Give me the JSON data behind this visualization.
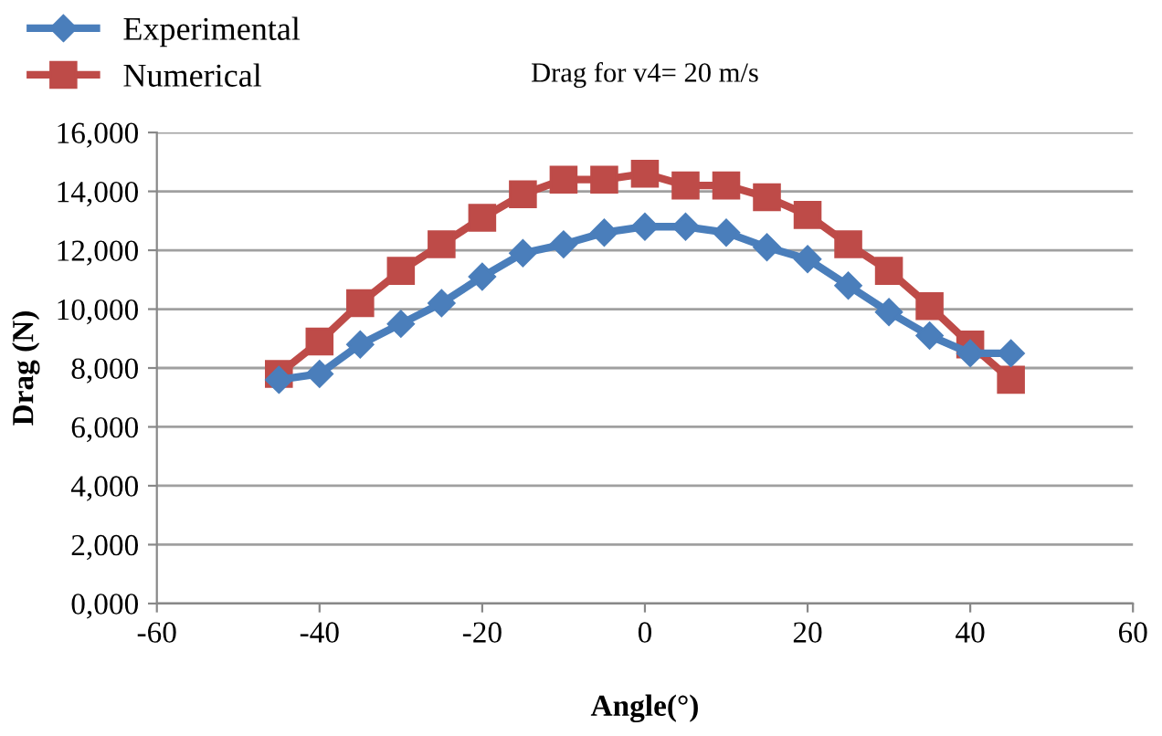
{
  "chart_data": {
    "type": "line",
    "title": "Drag for v4= 20 m/s",
    "xlabel": "Angle(°)",
    "ylabel": "Drag (N)",
    "x": [
      -45,
      -40,
      -35,
      -30,
      -25,
      -20,
      -15,
      -10,
      -5,
      0,
      5,
      10,
      15,
      20,
      25,
      30,
      35,
      40,
      45
    ],
    "series": [
      {
        "name": "Experimental",
        "color": "#4a7ebb",
        "marker": "diamond",
        "values": [
          7600,
          7800,
          8800,
          9500,
          10200,
          11100,
          11900,
          12200,
          12600,
          12800,
          12800,
          12600,
          12100,
          11700,
          10800,
          9900,
          9100,
          8500,
          8500
        ]
      },
      {
        "name": "Numerical",
        "color": "#be4b48",
        "marker": "square",
        "values": [
          7800,
          8900,
          10200,
          11300,
          12200,
          13100,
          13900,
          14400,
          14400,
          14600,
          14200,
          14200,
          13800,
          13200,
          12200,
          11300,
          10100,
          8800,
          7600
        ]
      }
    ],
    "xlim": [
      -60,
      60
    ],
    "xticks": [
      -60,
      -40,
      -20,
      0,
      20,
      40,
      60
    ],
    "ylim": [
      0,
      16000
    ],
    "yticks": [
      {
        "value": 0,
        "label": "0,000"
      },
      {
        "value": 2000,
        "label": "2,000"
      },
      {
        "value": 4000,
        "label": "4,000"
      },
      {
        "value": 6000,
        "label": "6,000"
      },
      {
        "value": 8000,
        "label": "8,000"
      },
      {
        "value": 10000,
        "label": "10,000"
      },
      {
        "value": 12000,
        "label": "12,000"
      },
      {
        "value": 14000,
        "label": "14,000"
      },
      {
        "value": 16000,
        "label": "16,000"
      }
    ],
    "grid": "y",
    "legend": "top left",
    "line_style": "solid"
  }
}
